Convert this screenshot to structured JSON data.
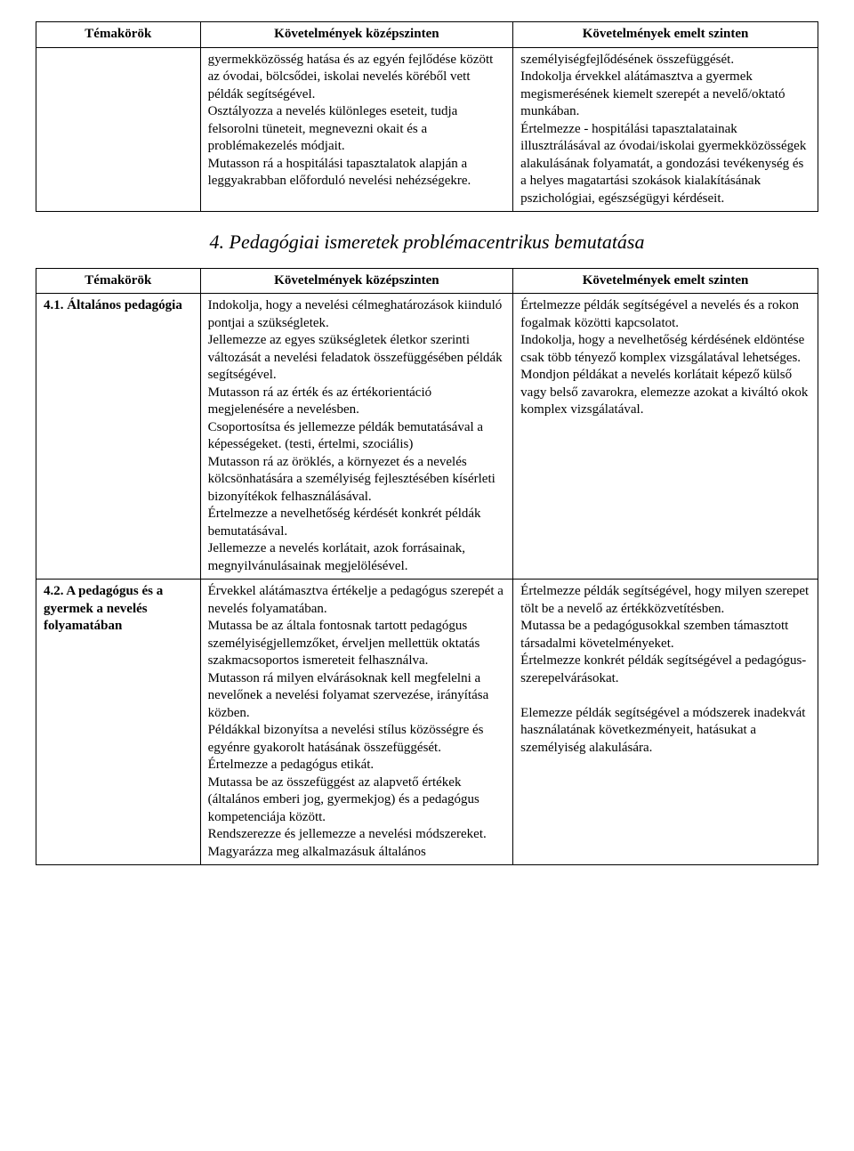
{
  "table1": {
    "headers": [
      "Témakörök",
      "Követelmények középszinten",
      "Követelmények emelt szinten"
    ],
    "row": {
      "topic": "",
      "mid": "gyermekközösség hatása és az egyén fejlődése között az óvodai, bölcsődei, iskolai nevelés köréből vett példák segítségével.\nOsztályozza a nevelés különleges eseteit, tudja felsorolni tüneteit, megnevezni okait és a problémakezelés módjait.\nMutasson rá a hospitálási tapasztalatok alapján a leggyakrabban előforduló nevelési nehézségekre.",
      "adv": "személyiségfejlődésének összefüggését.\nIndokolja érvekkel alátámasztva a gyermek megismerésének kiemelt szerepét a nevelő/oktató munkában.\nÉrtelmezze - hospitálási tapasztalatainak illusztrálásával az óvodai/iskolai gyermekközösségek alakulásának folyamatát, a gondozási tevékenység és a helyes magatartási szokások kialakításának pszichológiai, egészségügyi kérdéseit."
    }
  },
  "section_title": "4. Pedagógiai ismeretek problémacentrikus bemutatása",
  "table2": {
    "headers": [
      "Témakörök",
      "Követelmények középszinten",
      "Követelmények emelt szinten"
    ],
    "rows": [
      {
        "topic": "4.1. Általános pedagógia",
        "mid": "Indokolja, hogy a nevelési célmeghatározások kiinduló pontjai a szükségletek.\nJellemezze az egyes szükségletek életkor szerinti változását a nevelési feladatok összefüggésében példák segítségével.\nMutasson rá az érték és az értékorientáció megjelenésére a nevelésben.\nCsoportosítsa és jellemezze példák bemutatásával a képességeket. (testi, értelmi, szociális)\nMutasson rá az öröklés, a környezet és a nevelés kölcsönhatására a személyiség fejlesztésében kísérleti bizonyítékok felhasználásával.\nÉrtelmezze a nevelhetőség kérdését konkrét példák bemutatásával.\nJellemezze a nevelés korlátait, azok forrásainak, megnyilvánulásainak megjelölésével.",
        "adv": "Értelmezze példák segítségével a nevelés és a rokon fogalmak közötti kapcsolatot.\nIndokolja, hogy a nevelhetőség kérdésének eldöntése csak több tényező komplex vizsgálatával lehetséges.\nMondjon példákat a nevelés korlátait képező külső vagy belső zavarokra, elemezze azokat a kiváltó okok komplex vizsgálatával."
      },
      {
        "topic": "4.2. A pedagógus és a gyermek a nevelés folyamatában",
        "mid": "Érvekkel alátámasztva értékelje a pedagógus szerepét a nevelés folyamatában.\nMutassa be az általa fontosnak tartott pedagógus személyiségjellemzőket, érveljen mellettük oktatás szakmacsoportos ismereteit felhasználva.\nMutasson rá milyen elvárásoknak kell megfelelni a nevelőnek a nevelési folyamat szervezése, irányítása közben.\nPéldákkal bizonyítsa a nevelési stílus közösségre és egyénre gyakorolt hatásának összefüggését.\nÉrtelmezze a pedagógus etikát.\nMutassa be az összefüggést az alapvető értékek (általános emberi jog, gyermekjog) és a pedagógus kompetenciája között.\nRendszerezze és jellemezze a nevelési módszereket.\nMagyarázza meg alkalmazásuk általános",
        "adv": "Értelmezze példák segítségével, hogy milyen szerepet tölt be a nevelő az értékközvetítésben.\nMutassa be a pedagógusokkal szemben támasztott társadalmi követelményeket.\nÉrtelmezze konkrét példák segítségével a pedagógus-szerepelvárásokat.\n\nElemezze példák segítségével a módszerek inadekvát használatának következményeit, hatásukat a személyiség alakulására."
      }
    ]
  }
}
